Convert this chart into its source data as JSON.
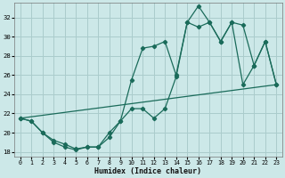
{
  "xlabel": "Humidex (Indice chaleur)",
  "bg_color": "#cce8e8",
  "grid_color": "#aacccc",
  "line_color": "#1a6b5a",
  "xlim": [
    -0.5,
    23.5
  ],
  "ylim": [
    17.5,
    33.5
  ],
  "xticks": [
    0,
    1,
    2,
    3,
    4,
    5,
    6,
    7,
    8,
    9,
    10,
    11,
    12,
    13,
    14,
    15,
    16,
    17,
    18,
    19,
    20,
    21,
    22,
    23
  ],
  "yticks": [
    18,
    20,
    22,
    24,
    26,
    28,
    30,
    32
  ],
  "line1_x": [
    0,
    1,
    2,
    3,
    4,
    5,
    6,
    7,
    8,
    9,
    10,
    11,
    12,
    13,
    14,
    15,
    16,
    17,
    18,
    19,
    20,
    21,
    22,
    23
  ],
  "line1_y": [
    21.5,
    21.2,
    20.0,
    19.2,
    18.8,
    18.3,
    18.5,
    18.5,
    19.5,
    21.2,
    25.5,
    28.8,
    29.0,
    29.5,
    26.0,
    31.5,
    33.2,
    31.5,
    29.5,
    31.5,
    31.2,
    27.0,
    29.5,
    25.0
  ],
  "line2_x": [
    0,
    1,
    2,
    3,
    4,
    5,
    6,
    7,
    8,
    9,
    10,
    11,
    12,
    13,
    14,
    15,
    16,
    17,
    18,
    19,
    20,
    21,
    22,
    23
  ],
  "line2_y": [
    21.5,
    21.2,
    20.0,
    19.0,
    18.5,
    18.2,
    18.5,
    18.5,
    20.0,
    21.2,
    22.5,
    22.5,
    21.5,
    22.5,
    25.8,
    31.5,
    31.0,
    31.5,
    29.5,
    31.5,
    25.0,
    27.0,
    29.5,
    25.0
  ],
  "line3_x": [
    0,
    23
  ],
  "line3_y": [
    21.5,
    25.0
  ]
}
